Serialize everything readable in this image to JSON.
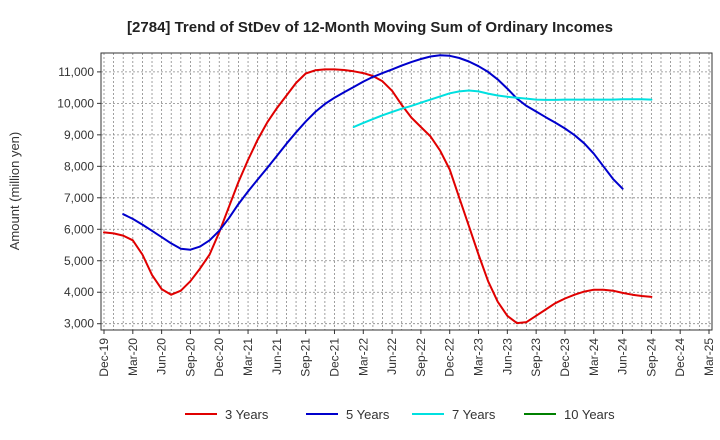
{
  "chart_data": {
    "type": "line",
    "title": "[2784]  Trend of StDev of 12-Month Moving Sum of Ordinary Incomes",
    "xlabel": "",
    "ylabel": "Amount (million yen)",
    "ylim": [
      2800,
      11600
    ],
    "yticks": [
      3000,
      4000,
      5000,
      6000,
      7000,
      8000,
      9000,
      10000,
      11000
    ],
    "ytick_labels": [
      "3,000",
      "4,000",
      "5,000",
      "6,000",
      "7,000",
      "8,000",
      "9,000",
      "10,000",
      "11,000"
    ],
    "x_count": 64,
    "xtick_index": [
      0,
      3,
      6,
      9,
      12,
      15,
      18,
      21,
      24,
      27,
      30,
      33,
      36,
      39,
      42,
      45,
      48,
      51,
      54,
      57,
      60,
      63
    ],
    "xtick_labels": [
      "Dec-19",
      "Mar-20",
      "Jun-20",
      "Sep-20",
      "Dec-20",
      "Mar-21",
      "Jun-21",
      "Sep-21",
      "Dec-21",
      "Mar-22",
      "Jun-22",
      "Sep-22",
      "Dec-22",
      "Mar-23",
      "Jun-23",
      "Sep-23",
      "Dec-23",
      "Mar-24",
      "Jun-24",
      "Sep-24",
      "Dec-24",
      "Mar-25"
    ],
    "grid": true,
    "legend_position": "bottom",
    "series": [
      {
        "name": "3 Years",
        "color": "#e00000",
        "start": 0,
        "values": [
          5900,
          5870,
          5800,
          5650,
          5200,
          4550,
          4100,
          3920,
          4050,
          4350,
          4750,
          5200,
          5900,
          6700,
          7500,
          8200,
          8850,
          9400,
          9850,
          10250,
          10650,
          10950,
          11050,
          11080,
          11080,
          11060,
          11020,
          10960,
          10870,
          10700,
          10400,
          9950,
          9550,
          9250,
          8950,
          8500,
          7900,
          7000,
          6100,
          5200,
          4350,
          3700,
          3250,
          3020,
          3050,
          3250,
          3450,
          3650,
          3800,
          3920,
          4020,
          4080,
          4080,
          4050,
          3980,
          3920,
          3880,
          3850
        ]
      },
      {
        "name": "5 Years",
        "color": "#0000cc",
        "start": 2,
        "values": [
          6480,
          6330,
          6150,
          5950,
          5750,
          5550,
          5380,
          5350,
          5450,
          5650,
          5950,
          6350,
          6800,
          7200,
          7580,
          7950,
          8330,
          8720,
          9080,
          9420,
          9730,
          9980,
          10180,
          10350,
          10520,
          10690,
          10840,
          10960,
          11080,
          11200,
          11310,
          11410,
          11490,
          11530,
          11510,
          11440,
          11330,
          11180,
          11000,
          10760,
          10470,
          10150,
          9920,
          9740,
          9560,
          9390,
          9200,
          8990,
          8730,
          8400,
          8000,
          7600,
          7290
        ]
      },
      {
        "name": "7 Years",
        "color": "#00e0e0",
        "start": 26,
        "values": [
          9250,
          9380,
          9500,
          9620,
          9730,
          9830,
          9920,
          10020,
          10120,
          10220,
          10320,
          10380,
          10410,
          10380,
          10310,
          10250,
          10210,
          10180,
          10150,
          10120,
          10110,
          10110,
          10120,
          10120,
          10120,
          10120,
          10120,
          10120,
          10130,
          10130,
          10130,
          10120
        ]
      },
      {
        "name": "10 Years",
        "color": "#008000",
        "start": 0,
        "values": []
      }
    ]
  }
}
